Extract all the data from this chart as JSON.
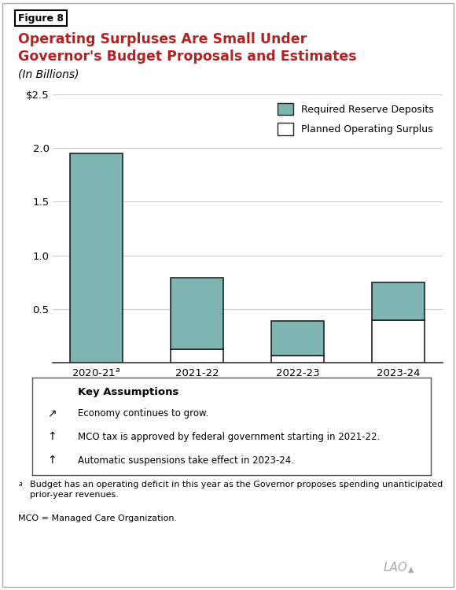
{
  "categories": [
    "2020-21",
    "2021-22",
    "2022-23",
    "2023-24"
  ],
  "category_superscripts": [
    "a",
    "",
    "",
    ""
  ],
  "reserve_deposits": [
    1.95,
    0.66,
    0.32,
    0.35
  ],
  "operating_surplus": [
    0.0,
    0.13,
    0.07,
    0.4
  ],
  "teal_color": "#7fb5b0",
  "white_color": "#ffffff",
  "bar_edge_color": "#222222",
  "ylim": [
    0,
    2.5
  ],
  "yticks": [
    0.0,
    0.5,
    1.0,
    1.5,
    2.0,
    2.5
  ],
  "ytick_labels": [
    "",
    "0.5",
    "1.0",
    "1.5",
    "2.0",
    "$2.5"
  ],
  "figure_title": "Figure 8",
  "chart_title": "Operating Surpluses Are Small Under\nGovernor's Budget Proposals and Estimates",
  "subtitle": "(In Billions)",
  "legend_reserve": "Required Reserve Deposits",
  "legend_surplus": "Planned Operating Surplus",
  "key_title": "Key Assumptions",
  "key_items": [
    "Economy continues to grow.",
    "MCO tax is approved by federal government starting in 2021-22.",
    "Automatic suspensions take effect in 2023-24."
  ],
  "footnote_a": "Budget has an operating deficit in this year as the Governor proposes spending unanticipated\nprior-year revenues.",
  "footnote_mco": "MCO = Managed Care Organization.",
  "lao_text": "LAO",
  "background_color": "#ffffff",
  "grid_color": "#cccccc",
  "title_color": "#b22222",
  "figure_label_color": "#000000"
}
